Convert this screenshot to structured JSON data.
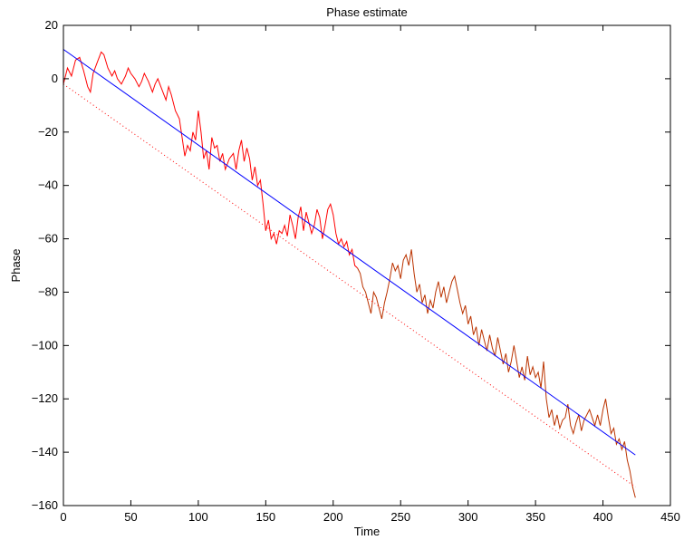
{
  "chart_data": {
    "type": "line",
    "title": "Phase estimate",
    "xlabel": "Time",
    "ylabel": "Phase",
    "xlim": [
      0,
      450
    ],
    "ylim": [
      -160,
      20
    ],
    "xticks": [
      0,
      50,
      100,
      150,
      200,
      250,
      300,
      350,
      400,
      450
    ],
    "yticks": [
      -160,
      -140,
      -120,
      -100,
      -80,
      -60,
      -40,
      -20,
      0,
      20
    ],
    "grid": false,
    "series": [
      {
        "style": "solid",
        "color": "#ff0000",
        "x": [
          0,
          3,
          6,
          9,
          12,
          15,
          18,
          20,
          22,
          25,
          28,
          30,
          33,
          36,
          38,
          40,
          43,
          46,
          48,
          50,
          53,
          56,
          58,
          60,
          63,
          66,
          68,
          70,
          73,
          76,
          78,
          80,
          83,
          86,
          88,
          90,
          92,
          94,
          96,
          98,
          100,
          102,
          104,
          106,
          108,
          110,
          112,
          114,
          116,
          118,
          120,
          123,
          126,
          128,
          130,
          132,
          134,
          136,
          138,
          140,
          142,
          144,
          146,
          148,
          150,
          152,
          154,
          156,
          158,
          160,
          162,
          164,
          166,
          168,
          170,
          172,
          174,
          176,
          178,
          180,
          182,
          184,
          186,
          188,
          190,
          192,
          194,
          196,
          198,
          200,
          202,
          204,
          206,
          208,
          210,
          212,
          214,
          216,
          218
        ],
        "y": [
          -2,
          4,
          1,
          7,
          8,
          3,
          -3,
          -5,
          2,
          6,
          10,
          9,
          4,
          1,
          3,
          0,
          -2,
          1,
          4,
          2,
          0,
          -3,
          -1,
          2,
          -1,
          -5,
          -2,
          0,
          -4,
          -8,
          -3,
          -6,
          -12,
          -15,
          -22,
          -29,
          -25,
          -27,
          -20,
          -23,
          -12,
          -20,
          -30,
          -27,
          -34,
          -22,
          -26,
          -25,
          -31,
          -28,
          -34,
          -30,
          -28,
          -34,
          -27,
          -23,
          -31,
          -26,
          -30,
          -38,
          -33,
          -40,
          -38,
          -47,
          -57,
          -53,
          -60,
          -58,
          -62,
          -57,
          -58,
          -55,
          -59,
          -51,
          -55,
          -60,
          -52,
          -48,
          -57,
          -50,
          -54,
          -58,
          -55,
          -49,
          -52,
          -60,
          -55,
          -49,
          -47,
          -51,
          -58,
          -62,
          -60,
          -63,
          -61,
          -66,
          -64,
          -70,
          -71
        ]
      },
      {
        "style": "solid",
        "color": "#bb3300",
        "x": [
          218,
          220,
          222,
          224,
          226,
          228,
          230,
          232,
          234,
          236,
          238,
          240,
          242,
          244,
          246,
          248,
          250,
          252,
          254,
          256,
          258,
          260,
          262,
          264,
          266,
          268,
          270,
          272,
          274,
          276,
          278,
          280,
          282,
          284,
          286,
          288,
          290,
          292,
          294,
          296,
          298,
          300,
          302,
          304,
          306,
          308,
          310,
          312,
          314,
          316,
          318,
          320,
          322,
          324,
          326,
          328,
          330,
          332,
          334,
          336,
          338,
          340,
          342,
          344,
          346,
          348,
          350,
          352,
          354,
          356,
          358,
          360,
          362,
          364,
          366,
          368,
          370,
          372,
          374,
          376,
          378,
          380,
          382,
          384,
          386,
          388,
          390,
          392,
          394,
          396,
          398,
          400,
          402,
          404,
          406,
          408,
          410,
          412,
          414,
          416,
          418,
          420,
          422,
          424
        ],
        "y": [
          -71,
          -73,
          -78,
          -80,
          -84,
          -88,
          -80,
          -82,
          -86,
          -90,
          -84,
          -80,
          -75,
          -69,
          -72,
          -70,
          -75,
          -68,
          -66,
          -70,
          -64,
          -73,
          -80,
          -77,
          -84,
          -81,
          -88,
          -83,
          -86,
          -80,
          -76,
          -82,
          -78,
          -84,
          -80,
          -76,
          -74,
          -79,
          -84,
          -88,
          -85,
          -92,
          -89,
          -96,
          -93,
          -100,
          -94,
          -98,
          -102,
          -96,
          -101,
          -104,
          -97,
          -102,
          -107,
          -103,
          -110,
          -106,
          -100,
          -106,
          -112,
          -108,
          -113,
          -104,
          -111,
          -108,
          -112,
          -110,
          -116,
          -106,
          -120,
          -127,
          -124,
          -130,
          -126,
          -131,
          -128,
          -127,
          -122,
          -130,
          -133,
          -129,
          -126,
          -132,
          -128,
          -126,
          -124,
          -127,
          -130,
          -126,
          -130,
          -124,
          -120,
          -127,
          -133,
          -131,
          -137,
          -135,
          -139,
          -136,
          -143,
          -147,
          -153,
          -157
        ]
      },
      {
        "style": "solid",
        "color": "#0000ff",
        "x": [
          0,
          424
        ],
        "y": [
          11,
          -141
        ]
      },
      {
        "style": "dotted",
        "color": "#ff0000",
        "x": [
          0,
          424
        ],
        "y": [
          -2,
          -153
        ]
      }
    ]
  }
}
